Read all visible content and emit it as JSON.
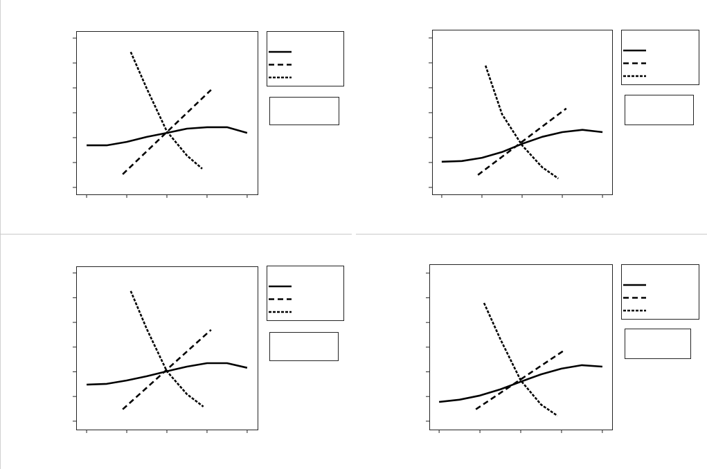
{
  "chart_data": [
    {
      "type": "line",
      "xlim": [
        -0.26,
        4.26
      ],
      "ylim": [
        -0.28,
        6.28
      ],
      "xticks": [
        0,
        1,
        2,
        3,
        4
      ],
      "yticks": [
        0,
        1,
        2,
        3,
        4,
        5,
        6
      ],
      "series": [
        {
          "color": "#000000",
          "dash": "solid",
          "x": [
            0,
            0.5,
            1,
            1.5,
            2,
            2.5,
            3,
            3.5,
            4
          ],
          "values": [
            1.69,
            1.69,
            1.83,
            2.03,
            2.19,
            2.36,
            2.42,
            2.42,
            2.19
          ]
        },
        {
          "color": "#000000",
          "dash": "dashed",
          "x": [
            0.9,
            3.1
          ],
          "values": [
            0.53,
            3.92
          ]
        },
        {
          "color": "#000000",
          "dash": "dotted",
          "x": [
            1.1,
            1.5,
            2,
            2.5,
            2.88
          ],
          "values": [
            5.44,
            3.97,
            2.25,
            1.28,
            0.75
          ]
        }
      ]
    },
    {
      "type": "line",
      "xlim": [
        -0.24,
        4.24
      ],
      "ylim": [
        -0.28,
        6.33
      ],
      "xticks": [
        0,
        1,
        2,
        3,
        4
      ],
      "yticks": [
        0,
        1,
        2,
        3,
        4,
        5,
        6
      ],
      "series": [
        {
          "color": "#000000",
          "dash": "solid",
          "x": [
            0,
            0.5,
            1,
            1.5,
            2,
            2.5,
            3,
            3.5,
            4
          ],
          "values": [
            1.03,
            1.06,
            1.19,
            1.42,
            1.75,
            2.03,
            2.22,
            2.31,
            2.22
          ]
        },
        {
          "color": "#000000",
          "dash": "dashed",
          "x": [
            0.9,
            3.1
          ],
          "values": [
            0.5,
            3.17
          ]
        },
        {
          "color": "#000000",
          "dash": "dotted",
          "x": [
            1.09,
            1.5,
            2,
            2.5,
            2.9
          ],
          "values": [
            4.89,
            2.94,
            1.69,
            0.81,
            0.36
          ]
        }
      ]
    },
    {
      "type": "line",
      "xlim": [
        -0.26,
        4.26
      ],
      "ylim": [
        -0.34,
        6.27
      ],
      "xticks": [
        0,
        1,
        2,
        3,
        4
      ],
      "yticks": [
        0,
        1,
        2,
        3,
        4,
        5,
        6
      ],
      "series": [
        {
          "color": "#000000",
          "dash": "solid",
          "x": [
            0,
            0.5,
            1,
            1.5,
            2,
            2.5,
            3,
            3.5,
            4
          ],
          "values": [
            1.48,
            1.51,
            1.65,
            1.82,
            2.02,
            2.21,
            2.35,
            2.35,
            2.16
          ]
        },
        {
          "color": "#000000",
          "dash": "dashed",
          "x": [
            0.9,
            3.1
          ],
          "values": [
            0.48,
            3.7
          ]
        },
        {
          "color": "#000000",
          "dash": "dotted",
          "x": [
            1.1,
            1.5,
            2,
            2.5,
            2.91
          ],
          "values": [
            5.27,
            3.73,
            2.02,
            1.09,
            0.59
          ]
        }
      ]
    },
    {
      "type": "line",
      "xlim": [
        -0.24,
        4.24
      ],
      "ylim": [
        -0.34,
        6.36
      ],
      "xticks": [
        0,
        1,
        2,
        3,
        4
      ],
      "yticks": [
        0,
        1,
        2,
        3,
        4,
        5,
        6
      ],
      "series": [
        {
          "color": "#000000",
          "dash": "solid",
          "x": [
            0,
            0.5,
            1,
            1.5,
            2,
            2.5,
            3,
            3.5,
            4
          ],
          "values": [
            0.78,
            0.87,
            1.04,
            1.29,
            1.6,
            1.9,
            2.13,
            2.27,
            2.21
          ]
        },
        {
          "color": "#000000",
          "dash": "dashed",
          "x": [
            0.9,
            3.1
          ],
          "values": [
            0.48,
            2.91
          ]
        },
        {
          "color": "#000000",
          "dash": "dotted",
          "x": [
            1.1,
            1.5,
            2,
            2.5,
            2.9
          ],
          "values": [
            4.79,
            3.33,
            1.65,
            0.67,
            0.22
          ]
        }
      ]
    }
  ]
}
